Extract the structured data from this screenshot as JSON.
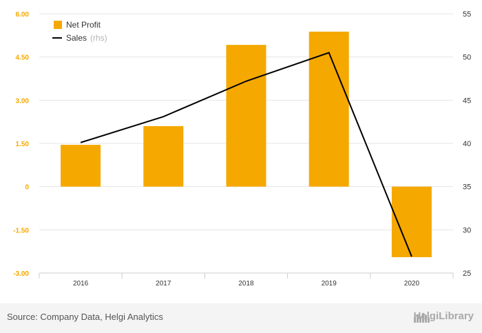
{
  "chart_data": {
    "type": "bar",
    "categories": [
      "2016",
      "2017",
      "2018",
      "2019",
      "2020"
    ],
    "series": [
      {
        "name": "Net Profit",
        "axis": "left",
        "kind": "bar",
        "color": "#f5a800",
        "values": [
          1.45,
          2.1,
          4.92,
          5.38,
          -2.45
        ]
      },
      {
        "name": "Sales",
        "axis": "right",
        "kind": "line",
        "color": "#000000",
        "values": [
          40.1,
          43.1,
          47.2,
          50.5,
          26.9
        ]
      }
    ],
    "left_axis": {
      "ticks": [
        "6.00",
        "4.50",
        "3.00",
        "1.50",
        "0",
        "-1.50",
        "-3.00"
      ],
      "ylim": [
        -3,
        6
      ]
    },
    "right_axis": {
      "ticks": [
        "55",
        "50",
        "45",
        "40",
        "35",
        "30",
        "25"
      ],
      "ylim": [
        25,
        55
      ]
    },
    "legend": {
      "placement": "top-left",
      "entries": [
        "Net Profit",
        "Sales"
      ],
      "note": "(rhs)"
    },
    "grid": true
  },
  "footer": {
    "source": "Source: Company Data, Helgi Analytics",
    "brand": "HelgiLibrary"
  }
}
